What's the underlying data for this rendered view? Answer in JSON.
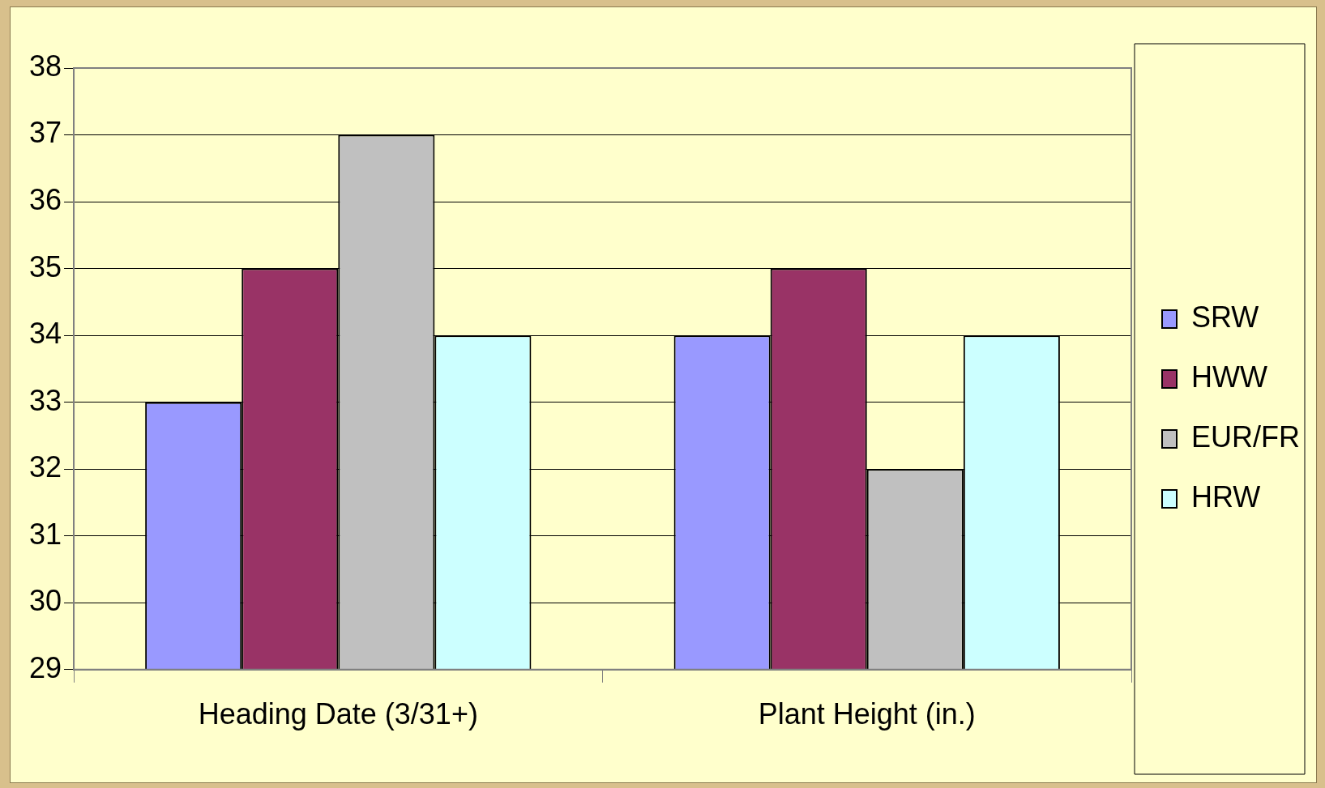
{
  "chart_data": {
    "type": "bar",
    "categories": [
      "Heading Date (3/31+)",
      "Plant Height (in.)"
    ],
    "series": [
      {
        "name": "SRW",
        "color": "#9999ff",
        "values": [
          33,
          34
        ]
      },
      {
        "name": "HWW",
        "color": "#993366",
        "values": [
          35,
          35
        ]
      },
      {
        "name": "EUR/FR",
        "color": "#c0c0c0",
        "values": [
          37,
          32
        ]
      },
      {
        "name": "HRW",
        "color": "#ccffff",
        "values": [
          34,
          34
        ]
      }
    ],
    "ylim": [
      29,
      38
    ],
    "yticks": [
      29,
      30,
      31,
      32,
      33,
      34,
      35,
      36,
      37,
      38
    ],
    "grid": "y",
    "legend": "right"
  }
}
